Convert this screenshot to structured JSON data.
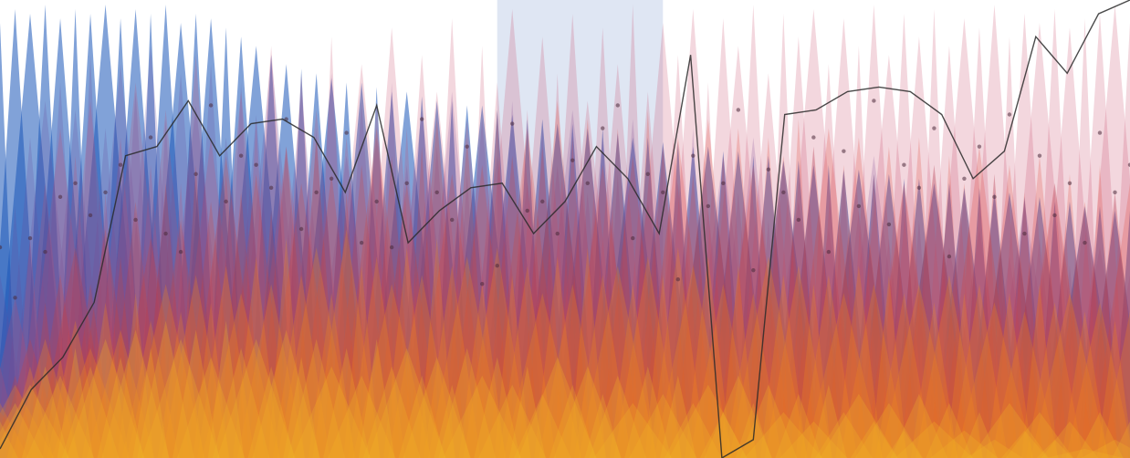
{
  "chart_data": {
    "type": "area",
    "title": "",
    "xlabel": "",
    "ylabel": "",
    "grid": false,
    "legend": "none",
    "x_range": [
      0,
      75
    ],
    "y_range": [
      0,
      100
    ],
    "baseline_band": {
      "name": "",
      "values": [
        2,
        15,
        22,
        34,
        66,
        68,
        78,
        66,
        73,
        74,
        70,
        58,
        77,
        47,
        54,
        59,
        60,
        49,
        56,
        68,
        61,
        49,
        88,
        0,
        4,
        75,
        76,
        80,
        81,
        80,
        75,
        61,
        67,
        92,
        84,
        97,
        100
      ]
    },
    "series": [
      {
        "name": "",
        "color": "#1a56b8",
        "values": [
          95,
          98,
          97,
          99,
          96,
          98,
          97,
          99,
          96,
          98,
          97,
          99,
          95,
          97,
          96,
          94,
          92,
          90,
          88,
          86,
          85,
          84,
          83,
          82,
          82,
          81,
          80,
          80,
          79,
          78,
          78,
          77,
          77,
          76,
          75,
          74,
          74,
          73,
          73,
          72,
          72,
          71,
          70,
          70,
          69,
          69,
          68,
          68,
          67,
          67,
          66,
          66,
          65,
          65,
          64,
          64,
          63,
          63,
          62,
          62,
          61,
          61,
          60,
          60,
          59,
          59,
          58,
          58,
          57,
          57,
          56,
          56,
          55,
          55,
          54,
          54
        ]
      },
      {
        "name": "",
        "color": "#6b4a9a",
        "values": [
          40,
          55,
          70,
          78,
          82,
          76,
          88,
          72,
          86,
          80,
          90,
          74,
          84,
          77,
          86,
          70,
          82,
          75,
          88,
          68,
          80,
          72,
          84,
          66,
          78,
          70,
          82,
          64,
          76,
          68,
          80,
          62,
          74,
          66,
          78,
          60,
          72,
          64,
          76,
          58,
          70,
          62,
          74,
          56,
          68,
          60,
          72,
          54,
          66,
          58,
          70,
          52,
          64,
          56,
          68,
          50,
          62,
          54,
          66,
          48,
          60,
          52,
          64,
          46,
          58,
          50,
          62,
          44,
          56,
          48,
          60,
          42,
          54,
          46,
          58,
          40
        ]
      },
      {
        "name": "",
        "color": "#c94a6a",
        "values": [
          20,
          35,
          48,
          60,
          72,
          66,
          78,
          58,
          70,
          82,
          64,
          76,
          60,
          88,
          70,
          62,
          80,
          74,
          90,
          68,
          84,
          76,
          92,
          70,
          86,
          78,
          94,
          72,
          88,
          80,
          96,
          74,
          90,
          82,
          98,
          76,
          92,
          84,
          97,
          78,
          94,
          86,
          99,
          80,
          95,
          88,
          98,
          82,
          96,
          90,
          99,
          84,
          97,
          92,
          98,
          86,
          96,
          90,
          99,
          88,
          97,
          92,
          98,
          90,
          96,
          94,
          99,
          92,
          97,
          95,
          98,
          94,
          96,
          97,
          99,
          95
        ]
      },
      {
        "name": "",
        "color": "#e03c28",
        "values": [
          10,
          18,
          26,
          34,
          40,
          46,
          38,
          50,
          44,
          56,
          48,
          60,
          52,
          64,
          56,
          66,
          58,
          62,
          54,
          68,
          60,
          70,
          62,
          58,
          64,
          72,
          66,
          60,
          68,
          74,
          62,
          70,
          64,
          76,
          66,
          72,
          68,
          78,
          70,
          74,
          64,
          72,
          66,
          76,
          68,
          70,
          62,
          74,
          66,
          72,
          64,
          70,
          66,
          74,
          68,
          72,
          64,
          70,
          62,
          68,
          60,
          70,
          64,
          66,
          60,
          68,
          62,
          64,
          58,
          66,
          60,
          62,
          56,
          64,
          58,
          60
        ]
      },
      {
        "name": "",
        "color": "#f08a1c",
        "values": [
          12,
          16,
          20,
          26,
          22,
          30,
          24,
          34,
          28,
          36,
          30,
          38,
          32,
          40,
          34,
          42,
          36,
          44,
          38,
          48,
          40,
          46,
          36,
          50,
          42,
          44,
          38,
          46,
          40,
          48,
          42,
          44,
          38,
          46,
          40,
          42,
          36,
          44,
          38,
          46,
          40,
          42,
          38,
          44,
          40,
          46,
          42,
          44,
          38,
          42,
          36,
          44,
          40,
          42,
          38,
          40,
          36,
          42,
          38,
          40,
          36,
          38,
          34,
          40,
          36,
          38,
          34,
          36,
          32,
          38,
          34,
          36,
          32,
          34,
          30,
          32
        ]
      },
      {
        "name": "",
        "color": "#f0b428",
        "values": [
          8,
          12,
          16,
          20,
          18,
          24,
          20,
          26,
          22,
          28,
          24,
          30,
          26,
          28,
          22,
          30,
          24,
          26,
          20,
          28,
          22,
          26,
          20,
          24,
          18,
          26,
          20,
          24,
          18,
          22,
          16,
          24,
          18,
          22,
          16,
          20,
          14,
          22,
          16,
          20,
          14,
          18,
          12,
          20,
          14,
          18,
          12,
          16,
          10,
          18,
          12,
          16,
          10,
          14,
          8,
          16,
          10,
          14,
          8,
          12,
          6,
          14,
          8,
          12,
          6,
          10,
          4,
          12,
          6,
          10,
          4,
          8,
          2,
          10,
          4,
          8
        ]
      }
    ],
    "points": [
      [
        0,
        46
      ],
      [
        1,
        35
      ],
      [
        2,
        48
      ],
      [
        3,
        45
      ],
      [
        4,
        57
      ],
      [
        5,
        60
      ],
      [
        6,
        53
      ],
      [
        7,
        58
      ],
      [
        8,
        64
      ],
      [
        9,
        52
      ],
      [
        10,
        70
      ],
      [
        11,
        49
      ],
      [
        12,
        45
      ],
      [
        13,
        62
      ],
      [
        14,
        77
      ],
      [
        15,
        56
      ],
      [
        16,
        66
      ],
      [
        17,
        64
      ],
      [
        18,
        59
      ],
      [
        19,
        74
      ],
      [
        20,
        50
      ],
      [
        21,
        58
      ],
      [
        22,
        61
      ],
      [
        23,
        71
      ],
      [
        24,
        47
      ],
      [
        25,
        56
      ],
      [
        26,
        46
      ],
      [
        27,
        60
      ],
      [
        28,
        74
      ],
      [
        29,
        58
      ],
      [
        30,
        52
      ],
      [
        31,
        68
      ],
      [
        32,
        38
      ],
      [
        33,
        42
      ],
      [
        34,
        73
      ],
      [
        35,
        54
      ],
      [
        36,
        56
      ],
      [
        37,
        49
      ],
      [
        38,
        65
      ],
      [
        39,
        60
      ],
      [
        40,
        72
      ],
      [
        41,
        77
      ],
      [
        42,
        48
      ],
      [
        43,
        62
      ],
      [
        44,
        58
      ],
      [
        45,
        39
      ],
      [
        46,
        66
      ],
      [
        47,
        55
      ],
      [
        48,
        60
      ],
      [
        49,
        76
      ],
      [
        50,
        41
      ],
      [
        51,
        63
      ],
      [
        52,
        58
      ],
      [
        53,
        52
      ],
      [
        54,
        70
      ],
      [
        55,
        45
      ],
      [
        56,
        67
      ],
      [
        57,
        55
      ],
      [
        58,
        78
      ],
      [
        59,
        51
      ],
      [
        60,
        64
      ],
      [
        61,
        59
      ],
      [
        62,
        72
      ],
      [
        63,
        44
      ],
      [
        64,
        61
      ],
      [
        65,
        68
      ],
      [
        66,
        57
      ],
      [
        67,
        75
      ],
      [
        68,
        49
      ],
      [
        69,
        66
      ],
      [
        70,
        53
      ],
      [
        71,
        60
      ],
      [
        72,
        47
      ],
      [
        73,
        71
      ],
      [
        74,
        58
      ],
      [
        75,
        64
      ]
    ]
  }
}
